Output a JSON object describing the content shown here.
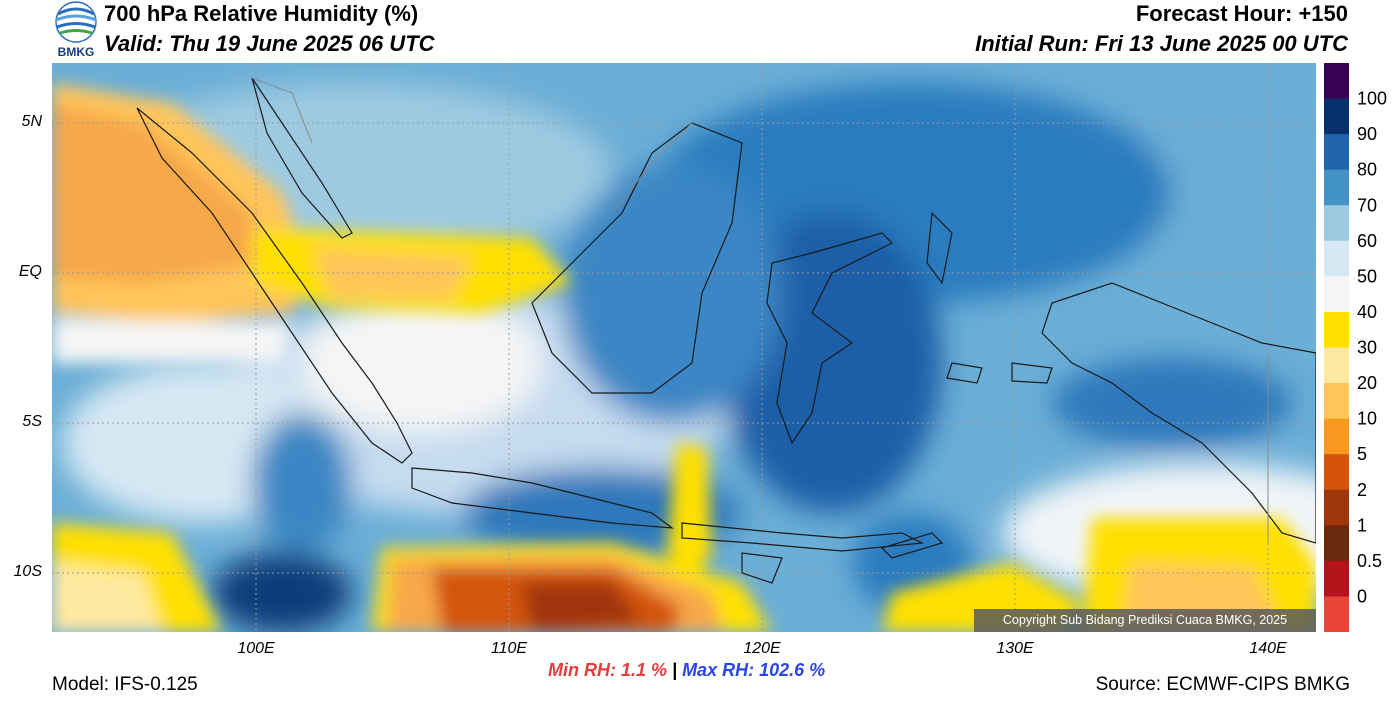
{
  "header": {
    "title": "700 hPa Relative Humidity (%)",
    "valid": "Valid: Thu 19 June 2025 06 UTC",
    "forecast_hour": "Forecast Hour: +150",
    "initial_run": "Initial Run: Fri 13 June 2025 00 UTC",
    "logo_text": "BMKG"
  },
  "map": {
    "lat_labels": [
      "5N",
      "EQ",
      "5S",
      "10S"
    ],
    "lon_labels": [
      "100E",
      "110E",
      "120E",
      "130E",
      "140E"
    ],
    "copyright": "Copyright Sub Bidang Prediksi Cuaca BMKG, 2025"
  },
  "colorbar": {
    "labels": [
      "100",
      "90",
      "80",
      "70",
      "60",
      "50",
      "40",
      "30",
      "20",
      "10",
      "5",
      "2",
      "1",
      "0.5",
      "0"
    ],
    "colors": [
      "#3a0052",
      "#08306b",
      "#2166ac",
      "#4292c6",
      "#9ecae1",
      "#d6e8f3",
      "#f5f5f5",
      "#ffe000",
      "#ffe9a0",
      "#ffc55a",
      "#f7981f",
      "#d4550a",
      "#a0360c",
      "#6b2a10",
      "#b5131b",
      "#e8443a"
    ]
  },
  "stats": {
    "min_rh": "Min RH:   1.1 %",
    "separator": " | ",
    "max_rh": "Max RH: 102.6 %"
  },
  "footer": {
    "model": "Model: IFS-0.125",
    "source": "Source: ECMWF-CIPS BMKG"
  }
}
